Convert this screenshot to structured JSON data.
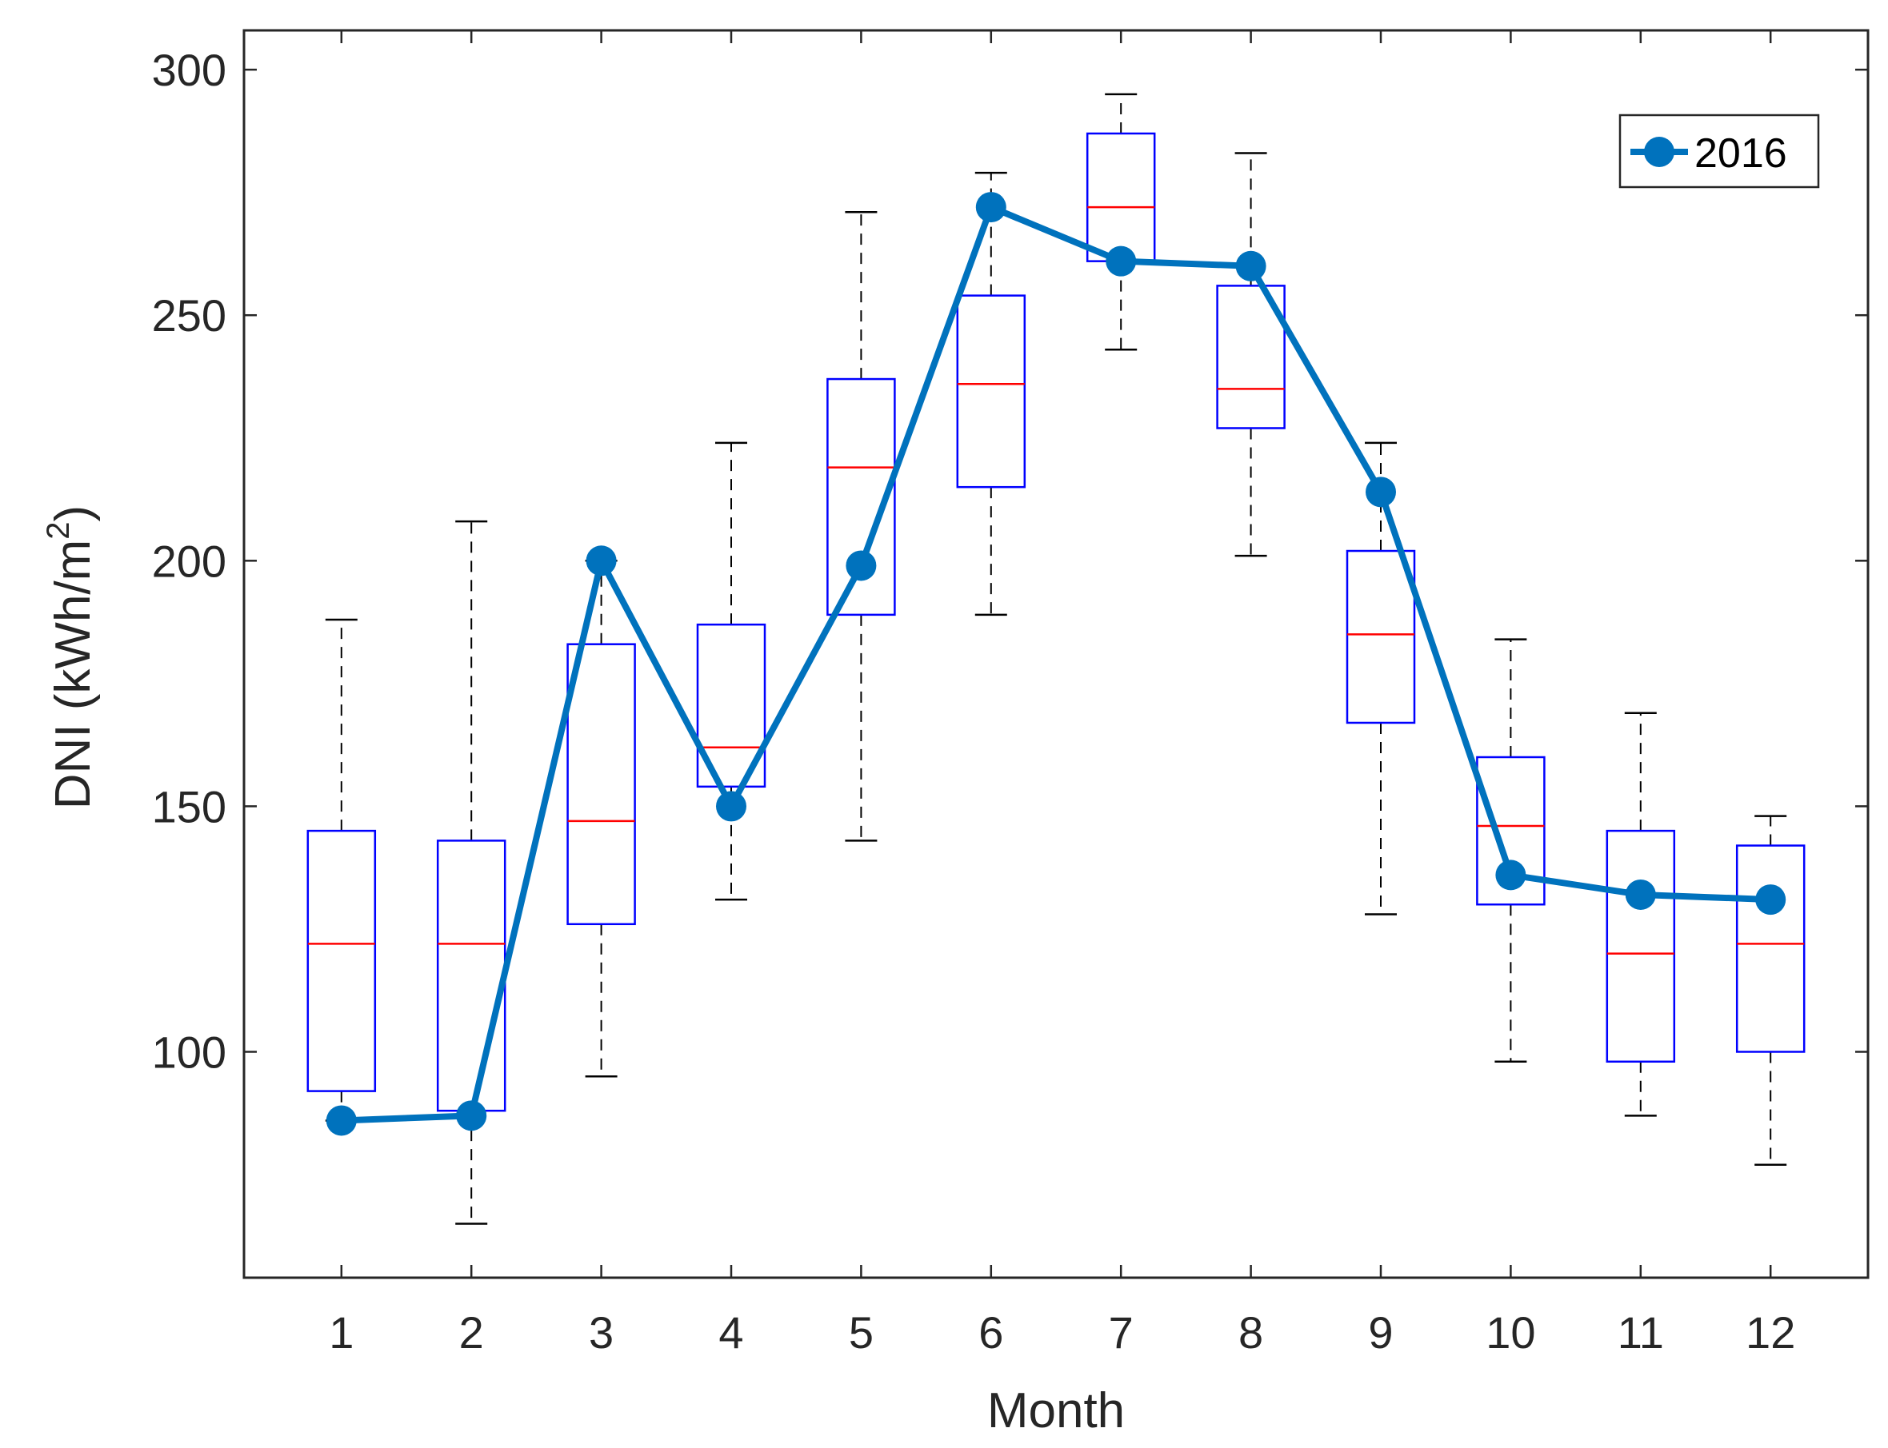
{
  "chart_data": {
    "type": "box",
    "xlabel": "Month",
    "ylabel_prefix": "DNI (kWh/m",
    "ylabel_sup": "2",
    "ylabel_suffix": ")",
    "ylim": [
      54,
      308
    ],
    "yticks": [
      100,
      150,
      200,
      250,
      300
    ],
    "categories": [
      "1",
      "2",
      "3",
      "4",
      "5",
      "6",
      "7",
      "8",
      "9",
      "10",
      "11",
      "12"
    ],
    "boxes": [
      {
        "month": "1",
        "whisker_low": 86,
        "q1": 92,
        "median": 122,
        "q3": 145,
        "whisker_high": 188
      },
      {
        "month": "2",
        "whisker_low": 65,
        "q1": 88,
        "median": 122,
        "q3": 143,
        "whisker_high": 208
      },
      {
        "month": "3",
        "whisker_low": 95,
        "q1": 126,
        "median": 147,
        "q3": 183,
        "whisker_high": 200
      },
      {
        "month": "4",
        "whisker_low": 131,
        "q1": 154,
        "median": 162,
        "q3": 187,
        "whisker_high": 224
      },
      {
        "month": "5",
        "whisker_low": 143,
        "q1": 189,
        "median": 219,
        "q3": 237,
        "whisker_high": 271
      },
      {
        "month": "6",
        "whisker_low": 189,
        "q1": 215,
        "median": 236,
        "q3": 254,
        "whisker_high": 279
      },
      {
        "month": "7",
        "whisker_low": 243,
        "q1": 261,
        "median": 272,
        "q3": 287,
        "whisker_high": 295
      },
      {
        "month": "8",
        "whisker_low": 201,
        "q1": 227,
        "median": 235,
        "q3": 256,
        "whisker_high": 283
      },
      {
        "month": "9",
        "whisker_low": 128,
        "q1": 167,
        "median": 185,
        "q3": 202,
        "whisker_high": 224
      },
      {
        "month": "10",
        "whisker_low": 98,
        "q1": 130,
        "median": 146,
        "q3": 160,
        "whisker_high": 184
      },
      {
        "month": "11",
        "whisker_low": 87,
        "q1": 98,
        "median": 120,
        "q3": 145,
        "whisker_high": 169
      },
      {
        "month": "12",
        "whisker_low": 77,
        "q1": 100,
        "median": 122,
        "q3": 142,
        "whisker_high": 148
      }
    ],
    "series": [
      {
        "name": "2016",
        "color": "#0072BD",
        "values": [
          86,
          87,
          200,
          150,
          199,
          272,
          261,
          260,
          214,
          136,
          132,
          131
        ]
      }
    ],
    "legend_position": "top-right",
    "colors": {
      "box": "#0000FF",
      "median": "#FF0000",
      "whisker": "#000000",
      "axis": "#262626"
    }
  }
}
